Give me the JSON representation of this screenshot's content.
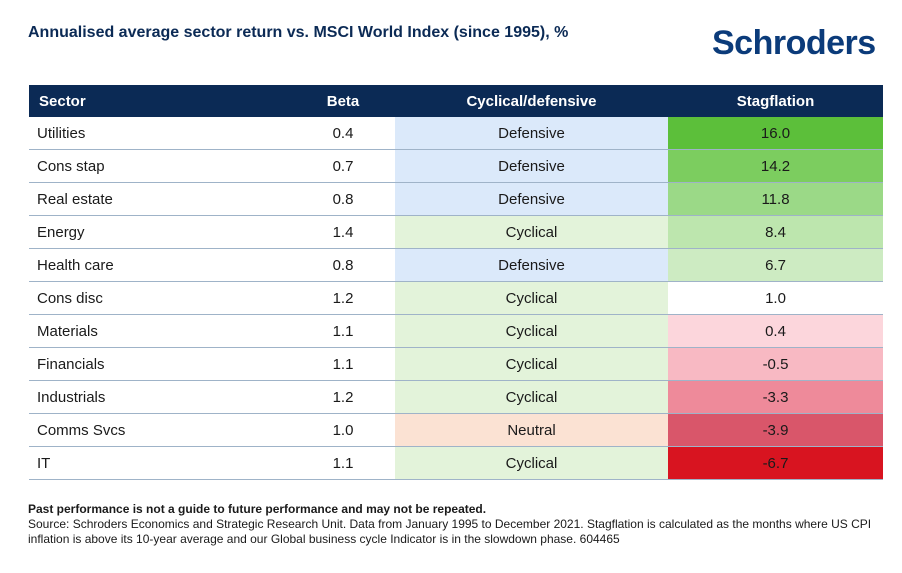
{
  "title": "Annualised average sector return vs. MSCI World Index (since 1995), %",
  "logo_text": "Schroders",
  "colors": {
    "header_bg": "#0b2a55",
    "defensive": "#dbe9fa",
    "cyclical": "#e3f3da",
    "neutral": "#fbe2d3"
  },
  "chart_data": {
    "type": "table",
    "columns": [
      "Sector",
      "Beta",
      "Cyclical/defensive",
      "Stagflation"
    ],
    "rows": [
      {
        "sector": "Utilities",
        "beta": "0.4",
        "type": "Defensive",
        "stagflation": "16.0",
        "stag_color": "#5cbf3a"
      },
      {
        "sector": "Cons stap",
        "beta": "0.7",
        "type": "Defensive",
        "stagflation": "14.2",
        "stag_color": "#7ccd5f"
      },
      {
        "sector": "Real estate",
        "beta": "0.8",
        "type": "Defensive",
        "stagflation": "11.8",
        "stag_color": "#9bd987"
      },
      {
        "sector": "Energy",
        "beta": "1.4",
        "type": "Cyclical",
        "stagflation": "8.4",
        "stag_color": "#bde6ae"
      },
      {
        "sector": "Health care",
        "beta": "0.8",
        "type": "Defensive",
        "stagflation": "6.7",
        "stag_color": "#cdebc2"
      },
      {
        "sector": "Cons disc",
        "beta": "1.2",
        "type": "Cyclical",
        "stagflation": "1.0",
        "stag_color": "#ffffff"
      },
      {
        "sector": "Materials",
        "beta": "1.1",
        "type": "Cyclical",
        "stagflation": "0.4",
        "stag_color": "#fcd6dc"
      },
      {
        "sector": "Financials",
        "beta": "1.1",
        "type": "Cyclical",
        "stagflation": "-0.5",
        "stag_color": "#f8b9c3"
      },
      {
        "sector": "Industrials",
        "beta": "1.2",
        "type": "Cyclical",
        "stagflation": "-3.3",
        "stag_color": "#ee8a9a"
      },
      {
        "sector": "Comms Svcs",
        "beta": "1.0",
        "type": "Neutral",
        "stagflation": "-3.9",
        "stag_color": "#d9566a"
      },
      {
        "sector": "IT",
        "beta": "1.1",
        "type": "Cyclical",
        "stagflation": "-6.7",
        "stag_color": "#d81420"
      }
    ]
  },
  "footer": {
    "disclaimer": "Past performance is not a guide to future performance and may not be repeated.",
    "source": "Source: Schroders Economics and Strategic Research Unit. Data from January 1995 to December 2021. Stagflation is calculated as the months where US CPI inflation is above its 10-year average and our Global business cycle Indicator is in the slowdown phase. 604465"
  }
}
